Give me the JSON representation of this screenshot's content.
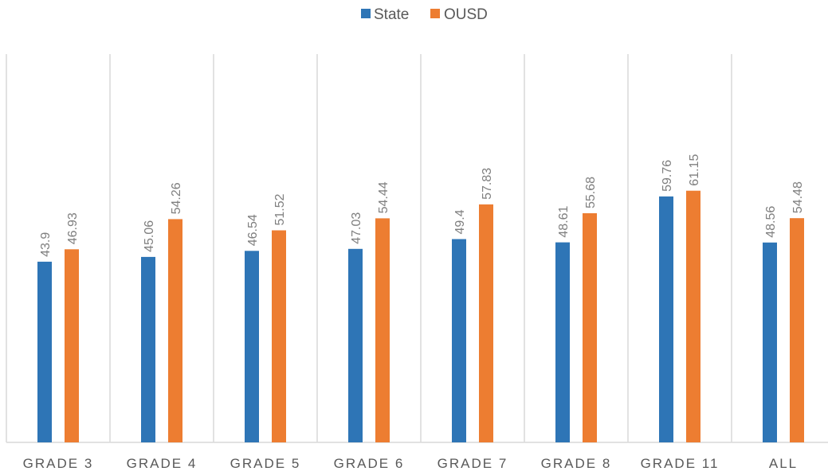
{
  "chart_data": {
    "type": "bar",
    "categories": [
      "GRADE 3",
      "GRADE 4",
      "GRADE 5",
      "GRADE 6",
      "GRADE 7",
      "GRADE 8",
      "GRADE 11",
      "ALL"
    ],
    "series": [
      {
        "name": "State",
        "color": "#2e75b6",
        "values": [
          43.9,
          45.06,
          46.54,
          47.03,
          49.4,
          48.61,
          59.76,
          48.56
        ],
        "labels": [
          "43.9",
          "45.06",
          "46.54",
          "47.03",
          "49.4",
          "48.61",
          "59.76",
          "48.56"
        ]
      },
      {
        "name": "OUSD",
        "color": "#ed7d31",
        "values": [
          46.93,
          54.26,
          51.52,
          54.44,
          57.83,
          55.68,
          61.15,
          54.48
        ],
        "labels": [
          "46.93",
          "54.26",
          "51.52",
          "54.44",
          "57.83",
          "55.68",
          "61.15",
          "54.48"
        ]
      }
    ],
    "title": "",
    "xlabel": "",
    "ylabel": "",
    "ylim": [
      0,
      70
    ],
    "grid": "vertical",
    "legend": "top-center",
    "data_labels": "rotated-vertical"
  }
}
